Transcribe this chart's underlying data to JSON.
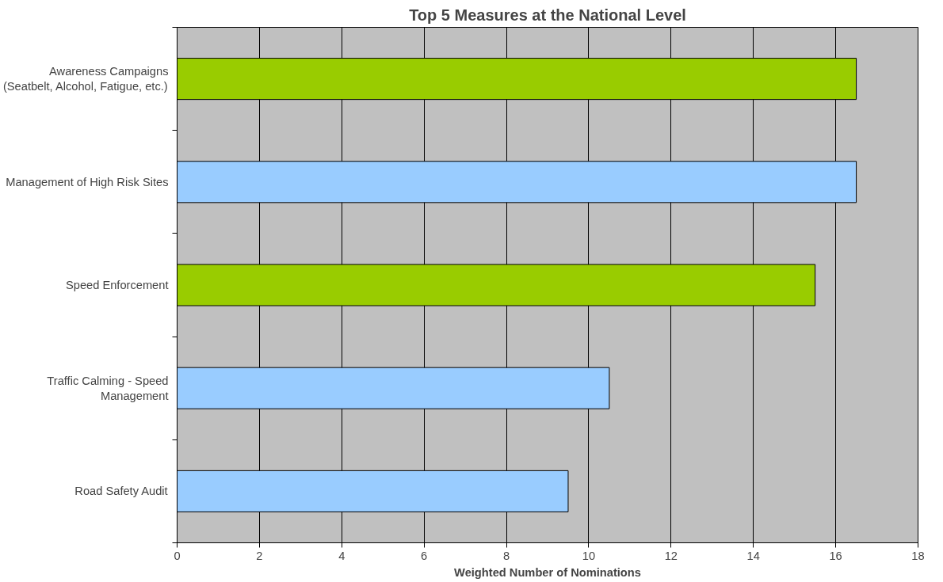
{
  "chart_data": {
    "type": "bar",
    "orientation": "horizontal",
    "title": "Top 5 Measures at the National Level",
    "xlabel": "Weighted Number of Nominations",
    "categories": [
      "Awareness Campaigns\n(Seatbelt, Alcohol, Fatigue, etc.)",
      "Management of High Risk Sites",
      "Speed Enforcement",
      "Traffic Calming - Speed\nManagement",
      "Road Safety Audit"
    ],
    "values": [
      16.5,
      16.5,
      15.5,
      10.5,
      9.5
    ],
    "colors": [
      "#99cc00",
      "#99ccff",
      "#99cc00",
      "#99ccff",
      "#99ccff"
    ],
    "xlim": [
      0,
      18
    ],
    "xticks": [
      0,
      2,
      4,
      6,
      8,
      10,
      12,
      14,
      16,
      18
    ],
    "grid": "x"
  }
}
